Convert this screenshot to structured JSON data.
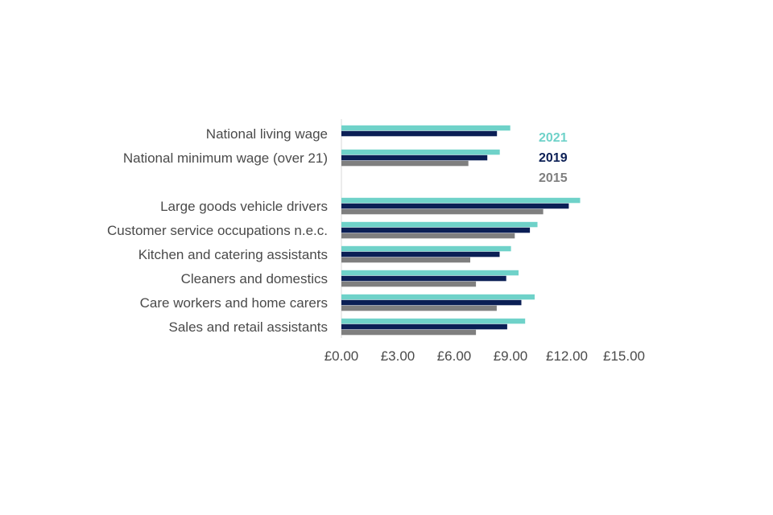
{
  "chart_data": {
    "type": "bar",
    "orientation": "horizontal",
    "title": "",
    "xlabel": "",
    "ylabel": "",
    "xlim": [
      0,
      15
    ],
    "grid": false,
    "legend_position": "right",
    "x_ticks": [
      "£0.00",
      "£3.00",
      "£6.00",
      "£9.00",
      "£12.00",
      "£15.00"
    ],
    "categories": [
      "National living wage",
      "National minimum wage (over 21)",
      "Large goods vehicle drivers",
      "Customer service occupations n.e.c.",
      "Kitchen and catering assistants",
      "Cleaners and domestics",
      "Care workers and home carers",
      "Sales and retail assistants"
    ],
    "series": [
      {
        "name": "2021",
        "color": "#6fd2c9",
        "values": [
          8.91,
          8.36,
          12.6,
          10.35,
          8.95,
          9.35,
          10.2,
          9.7
        ]
      },
      {
        "name": "2019",
        "color": "#0b1f55",
        "values": [
          8.21,
          7.7,
          12.0,
          9.95,
          8.35,
          8.7,
          9.5,
          8.75
        ]
      },
      {
        "name": "2015",
        "color": "#7f7f7f",
        "values": [
          null,
          6.7,
          10.65,
          9.15,
          6.8,
          7.1,
          8.2,
          7.1
        ]
      }
    ]
  }
}
